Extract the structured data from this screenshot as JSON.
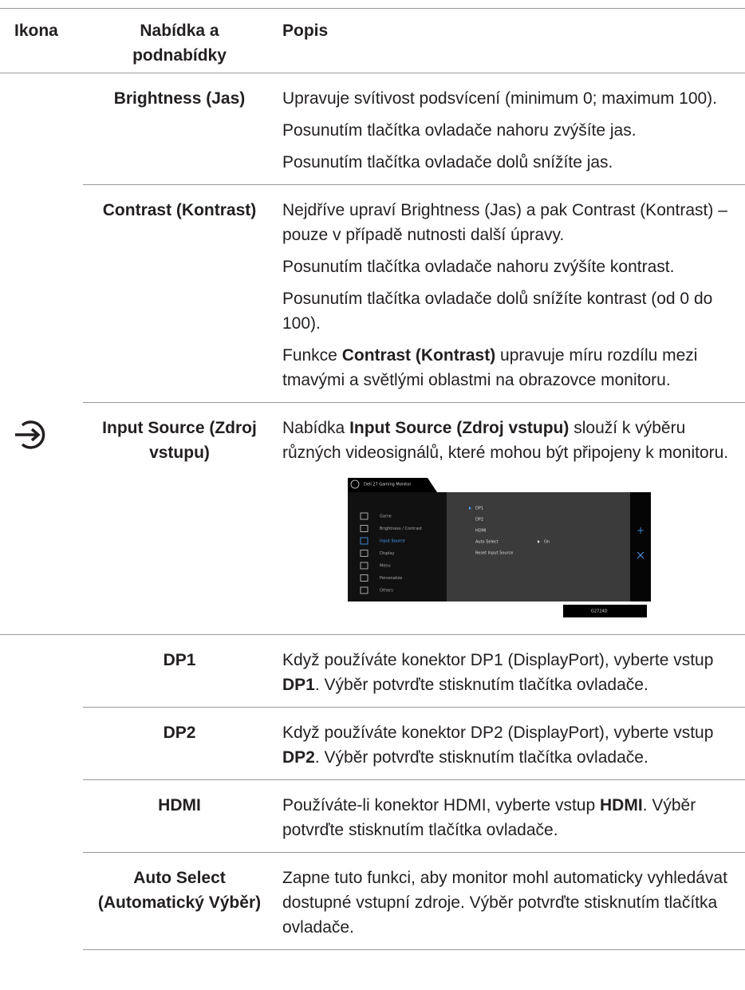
{
  "table": {
    "header": [
      "Ikona",
      "Nabídka a podnabídky",
      "Popis"
    ],
    "rows": [
      {
        "menu": "Brightness (Jas)",
        "description": [
          "Upravuje svítivost podsvícení (minimum 0; maximum 100).",
          "Posunutím tlačítka ovladače nahoru zvýšíte jas.",
          "Posunutím tlačítka ovladače dolů snížíte jas."
        ]
      },
      {
        "menu": "Contrast (Kontrast)",
        "description": [
          "Nejdříve upraví Brightness (Jas) a pak Contrast (Kontrast) – pouze v případě nutnosti další úpravy.",
          "Posunutím tlačítka ovladače nahoru zvýšíte kontrast.",
          "Posunutím tlačítka ovladače dolů snížíte kontrast (od 0 do 100).",
          [
            "Funkce ",
            {
              "text": "Contrast (Kontrast)",
              "bold": true
            },
            " upravuje míru rozdílu mezi tmavými a světlými oblastmi na obrazovce monitoru."
          ]
        ]
      },
      {
        "menu": "Input Source (Zdroj vstupu)",
        "description": [
          [
            "Nabídka ",
            {
              "text": "Input Source (Zdroj vstupu)",
              "bold": true
            },
            " slouží k výběru různých videosignálů, které mohou být připojeny k monitoru."
          ]
        ],
        "screenshot": {
          "title": "Dell 27 Gaming Monitor",
          "menu": [
            "Game",
            "Brightness / Contrast",
            "Input Source",
            "Display",
            "Menu",
            "Personalize",
            "Others"
          ],
          "submenu": [
            "DP1",
            "DP2",
            "HDMI",
            "Auto Select",
            "Reset Input Source"
          ],
          "auto_select_value": "On",
          "model": "G2724D"
        }
      },
      {
        "menu": "DP1",
        "description": [
          [
            "Když používáte konektor DP1 (DisplayPort), vyberte vstup ",
            {
              "text": "DP1",
              "bold": true
            },
            ". Výběr potvrďte stisknutím tlačítka ovladače."
          ]
        ]
      },
      {
        "menu": "DP2",
        "description": [
          [
            "Když používáte konektor DP2 (DisplayPort), vyberte vstup ",
            {
              "text": "DP2",
              "bold": true
            },
            ". Výběr potvrďte stisknutím tlačítka ovladače."
          ]
        ]
      },
      {
        "menu": "HDMI",
        "description": [
          [
            "Používáte-li konektor HDMI, vyberte vstup ",
            {
              "text": "HDMI",
              "bold": true
            },
            ". Výběr potvrďte stisknutím tlačítka ovladače."
          ]
        ]
      },
      {
        "menu": "Auto Select (Automatický Výběr)",
        "description": [
          "Zapne tuto funkci, aby monitor mohl automaticky vyhledávat dostupné vstupní zdroje. Výběr potvrďte stisknutím tlačítka ovladače."
        ]
      }
    ]
  }
}
